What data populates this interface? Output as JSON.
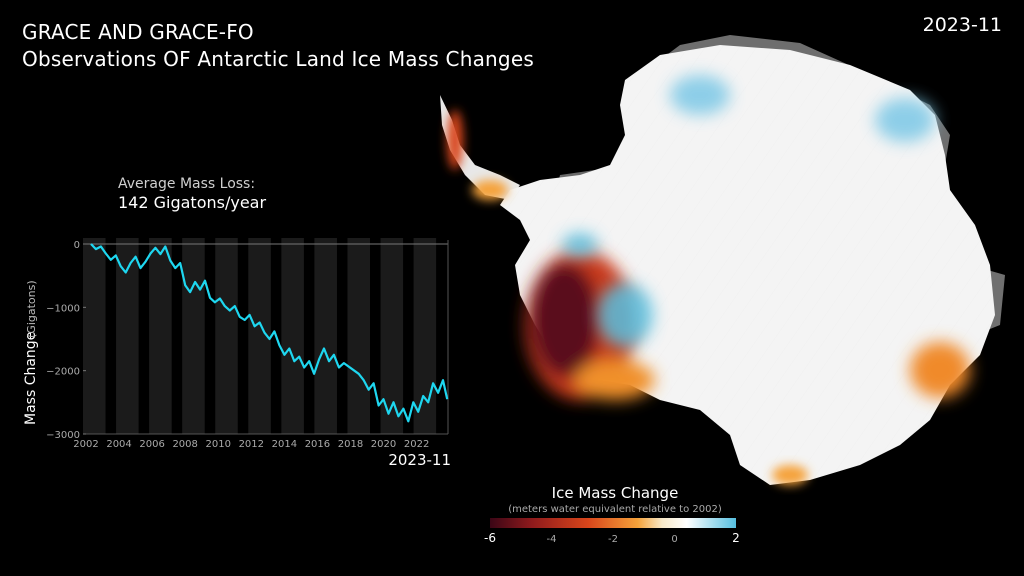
{
  "title": {
    "line1": "GRACE AND GRACE-FO",
    "line2": "Observations OF Antarctic Land Ice Mass Changes"
  },
  "current_date": "2023-11",
  "average": {
    "label": "Average Mass Loss:",
    "value": "142 Gigatons/year"
  },
  "legend": {
    "title": "Ice Mass Change",
    "subtitle": "(meters water equivalent relative to 2002)",
    "ticks": [
      "-6",
      "-4",
      "-2",
      "0",
      "2"
    ],
    "colors": [
      "#3b0616",
      "#8e1a1c",
      "#d9461b",
      "#f5a23a",
      "#f7e9c8",
      "#ffffff",
      "#56bfe0"
    ]
  },
  "chart_data": {
    "type": "line",
    "ylabel": "Mass Change",
    "ylabel_unit": "(Gigatons)",
    "xlabel": "",
    "ylim": [
      -3000,
      0
    ],
    "xlim": [
      2002,
      2023.9
    ],
    "y_ticks": [
      "0",
      "−1000",
      "−2000",
      "−3000"
    ],
    "x_ticks": [
      "2002",
      "2004",
      "2006",
      "2008",
      "2010",
      "2012",
      "2014",
      "2016",
      "2018",
      "2020",
      "2022"
    ],
    "current_label": "2023-11",
    "line_color": "#1ed7f0",
    "series": [
      {
        "x": [
          2002.3,
          2002.6,
          2002.9,
          2003.2,
          2003.5,
          2003.8,
          2004.1,
          2004.4,
          2004.7,
          2005.0,
          2005.3,
          2005.6,
          2005.9,
          2006.2,
          2006.5,
          2006.8,
          2007.1,
          2007.4,
          2007.7,
          2008.0,
          2008.3,
          2008.6,
          2008.9,
          2009.2,
          2009.5,
          2009.8,
          2010.1,
          2010.4,
          2010.7,
          2011.0,
          2011.3,
          2011.6,
          2011.9,
          2012.2,
          2012.5,
          2012.8,
          2013.1,
          2013.4,
          2013.7,
          2014.0,
          2014.3,
          2014.6,
          2014.9,
          2015.2,
          2015.5,
          2015.8,
          2016.1,
          2016.4,
          2016.7,
          2017.0,
          2017.3,
          2017.6,
          2018.5,
          2018.8,
          2019.1,
          2019.4,
          2019.7,
          2020.0,
          2020.3,
          2020.6,
          2020.9,
          2021.2,
          2021.5,
          2021.8,
          2022.1,
          2022.4,
          2022.7,
          2023.0,
          2023.3,
          2023.6,
          2023.85
        ],
        "y": [
          0,
          -80,
          -40,
          -150,
          -250,
          -180,
          -350,
          -450,
          -300,
          -200,
          -380,
          -280,
          -150,
          -60,
          -160,
          -40,
          -260,
          -380,
          -300,
          -650,
          -760,
          -600,
          -720,
          -580,
          -850,
          -920,
          -860,
          -980,
          -1050,
          -980,
          -1150,
          -1200,
          -1120,
          -1300,
          -1240,
          -1400,
          -1500,
          -1380,
          -1600,
          -1750,
          -1650,
          -1850,
          -1780,
          -1950,
          -1850,
          -2050,
          -1820,
          -1650,
          -1850,
          -1750,
          -1950,
          -1880,
          -2050,
          -2150,
          -2300,
          -2200,
          -2550,
          -2450,
          -2680,
          -2500,
          -2720,
          -2600,
          -2800,
          -2500,
          -2650,
          -2400,
          -2500,
          -2200,
          -2350,
          -2150,
          -2450
        ]
      }
    ]
  }
}
